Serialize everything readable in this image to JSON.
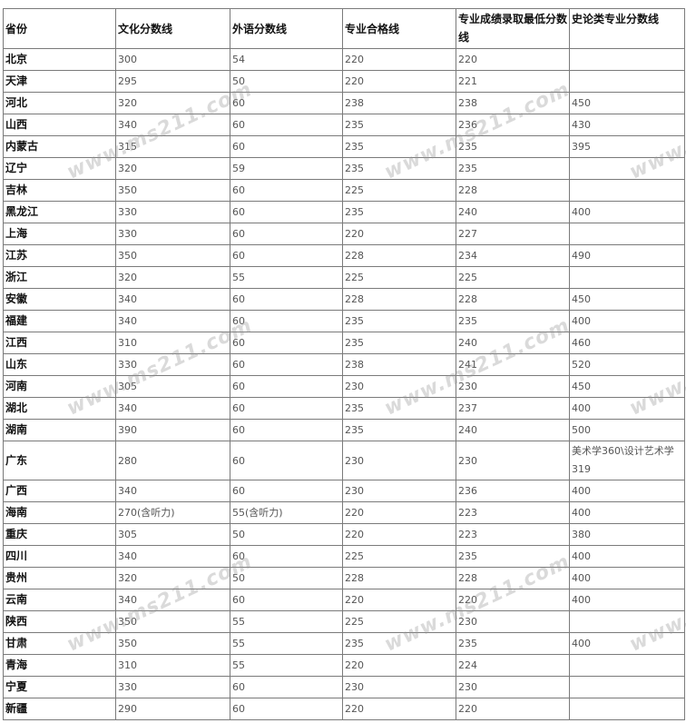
{
  "watermark": "www.ms211.com",
  "headers": [
    "省份",
    "文化分数线",
    "外语分数线",
    "专业合格线",
    "专业成绩录取最低分数线",
    "史论类专业分数线"
  ],
  "rows": [
    [
      "北京",
      "300",
      "54",
      "220",
      "220",
      ""
    ],
    [
      "天津",
      "295",
      "50",
      "220",
      "221",
      ""
    ],
    [
      "河北",
      "320",
      "60",
      "238",
      "238",
      "450"
    ],
    [
      "山西",
      "340",
      "60",
      "235",
      "236",
      "430"
    ],
    [
      "内蒙古",
      "315",
      "60",
      "235",
      "235",
      "395"
    ],
    [
      "辽宁",
      "320",
      "59",
      "235",
      "235",
      ""
    ],
    [
      "吉林",
      "350",
      "60",
      "225",
      "228",
      ""
    ],
    [
      "黑龙江",
      "330",
      "60",
      "235",
      "240",
      "400"
    ],
    [
      "上海",
      "330",
      "60",
      "220",
      "227",
      ""
    ],
    [
      "江苏",
      "350",
      "60",
      "228",
      "234",
      "490"
    ],
    [
      "浙江",
      "320",
      "55",
      "225",
      "225",
      ""
    ],
    [
      "安徽",
      "340",
      "60",
      "228",
      "228",
      "450"
    ],
    [
      "福建",
      "340",
      "60",
      "235",
      "235",
      "400"
    ],
    [
      "江西",
      "310",
      "60",
      "235",
      "240",
      "460"
    ],
    [
      "山东",
      "330",
      "60",
      "238",
      "241",
      "520"
    ],
    [
      "河南",
      "305",
      "60",
      "230",
      "230",
      "450"
    ],
    [
      "湖北",
      "340",
      "60",
      "235",
      "237",
      "400"
    ],
    [
      "湖南",
      "390",
      "60",
      "235",
      "240",
      "500"
    ],
    [
      "广东",
      "280",
      "60",
      "230",
      "230",
      "美术学360\\设计艺术学319"
    ],
    [
      "广西",
      "340",
      "60",
      "230",
      "236",
      "400"
    ],
    [
      "海南",
      "270(含听力)",
      "55(含听力)",
      "220",
      "223",
      "400"
    ],
    [
      "重庆",
      "305",
      "50",
      "220",
      "223",
      "380"
    ],
    [
      "四川",
      "340",
      "60",
      "225",
      "235",
      "400"
    ],
    [
      "贵州",
      "320",
      "50",
      "228",
      "228",
      "400"
    ],
    [
      "云南",
      "340",
      "60",
      "220",
      "220",
      "400"
    ],
    [
      "陕西",
      "350",
      "55",
      "225",
      "230",
      ""
    ],
    [
      "甘肃",
      "350",
      "55",
      "235",
      "235",
      "400"
    ],
    [
      "青海",
      "310",
      "55",
      "220",
      "224",
      ""
    ],
    [
      "宁夏",
      "330",
      "60",
      "230",
      "230",
      ""
    ],
    [
      "新疆",
      "290",
      "60",
      "220",
      "220",
      ""
    ]
  ]
}
